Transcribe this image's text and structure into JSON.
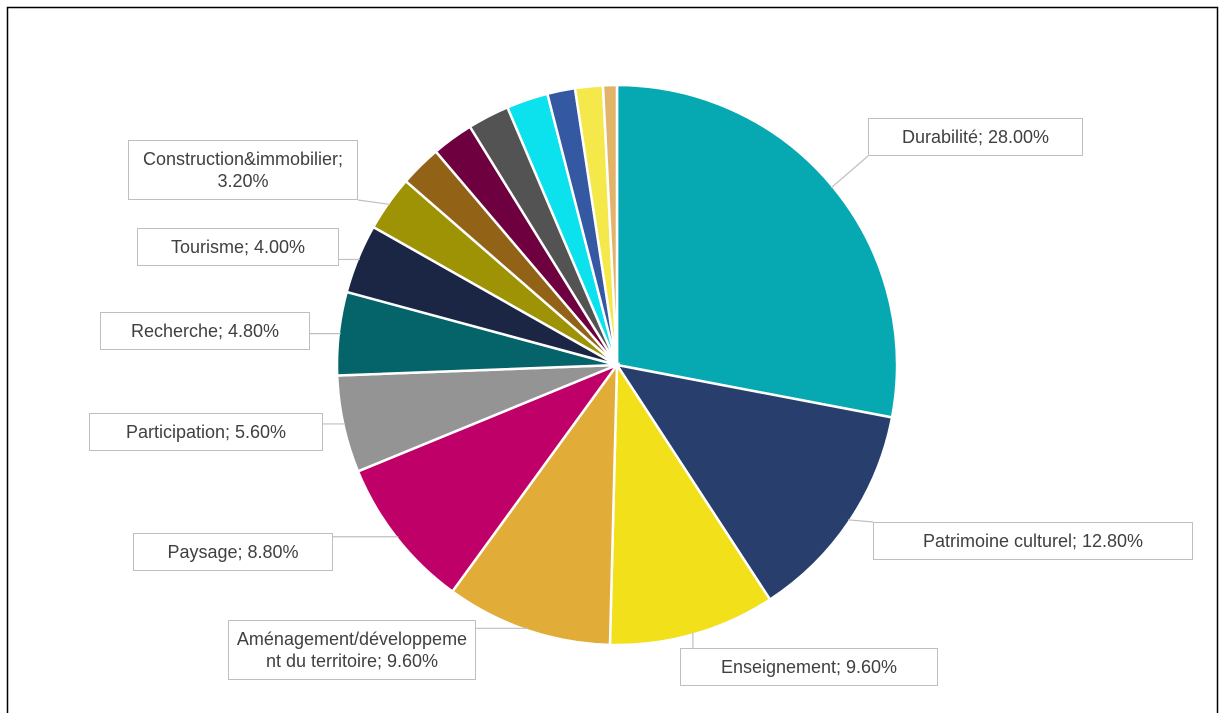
{
  "chart_data": {
    "type": "pie",
    "categories": [
      "Durabilité; 28.00%",
      "Patrimoine culturel; 12.80%",
      "Enseignement; 9.60%",
      "Aménagement/développement du territoire; 9.60%",
      "Paysage; 8.80%",
      "Participation; 5.60%",
      "Recherche; 4.80%",
      "Tourisme; 4.00%",
      "Construction&immobilier; 3.20%",
      null,
      null,
      null,
      null,
      null,
      null,
      null
    ],
    "values": [
      28,
      12.8,
      9.6,
      9.6,
      8.8,
      5.6,
      4.8,
      4.0,
      3.2,
      2.4,
      2.4,
      2.4,
      2.4,
      1.6,
      1.6,
      0.8
    ],
    "colors": [
      "#06a9b1",
      "#283f6e",
      "#f1e01a",
      "#e1ac37",
      "#bf0068",
      "#949494",
      "#05636a",
      "#1a2644",
      "#9e9205",
      "#926316",
      "#6e0040",
      "#535353",
      "#0ce1ee",
      "#3558a3",
      "#f5e84a",
      "#e2b46a"
    ]
  }
}
